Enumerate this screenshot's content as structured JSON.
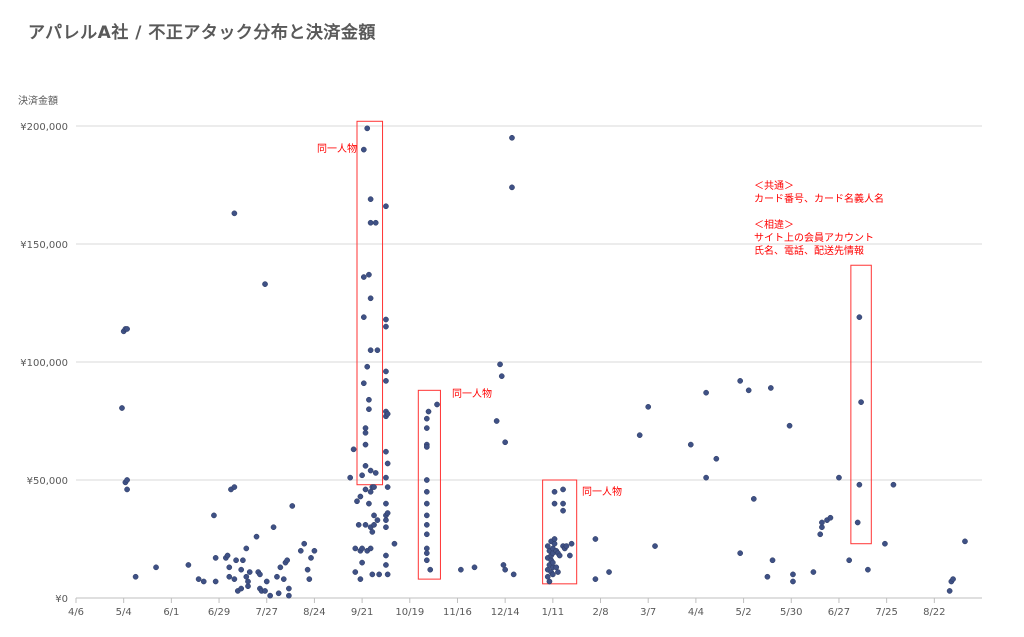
{
  "chart_data": {
    "type": "scatter",
    "title": "アパレルA社 / 不正アタック分布と決済金額",
    "ylabel": "決済金額",
    "xlabel": "",
    "ylim": [
      0,
      200000
    ],
    "grid": true,
    "x_tick_labels": [
      "4/6",
      "5/4",
      "6/1",
      "6/29",
      "7/27",
      "8/24",
      "9/21",
      "10/19",
      "11/16",
      "12/14",
      "1/11",
      "2/8",
      "3/7",
      "4/4",
      "5/2",
      "5/30",
      "6/27",
      "7/25",
      "8/22"
    ],
    "y_tick_labels": [
      "¥0",
      "¥50,000",
      "¥100,000",
      "¥150,000",
      "¥200,000"
    ],
    "y_ticks": [
      0,
      50000,
      100000,
      150000,
      200000
    ],
    "x_range_days": [
      0,
      532
    ],
    "x_tick_days": [
      0,
      28,
      56,
      84,
      112,
      140,
      168,
      196,
      224,
      252,
      280,
      308,
      336,
      364,
      392,
      420,
      448,
      476,
      504
    ],
    "points": [
      [
        27,
        80500
      ],
      [
        28,
        113000
      ],
      [
        29,
        114000
      ],
      [
        30,
        114000
      ],
      [
        29,
        49000
      ],
      [
        30,
        50000
      ],
      [
        30,
        46000
      ],
      [
        35,
        9000
      ],
      [
        47,
        13000
      ],
      [
        66,
        14000
      ],
      [
        72,
        8000
      ],
      [
        75,
        7000
      ],
      [
        82,
        7000
      ],
      [
        82,
        17000
      ],
      [
        81,
        35000
      ],
      [
        88,
        17000
      ],
      [
        89,
        18000
      ],
      [
        90,
        13000
      ],
      [
        90,
        9000
      ],
      [
        91,
        46000
      ],
      [
        93,
        47000
      ],
      [
        93,
        163000
      ],
      [
        93,
        8000
      ],
      [
        94,
        16000
      ],
      [
        95,
        3000
      ],
      [
        97,
        4000
      ],
      [
        97,
        12000
      ],
      [
        98,
        16000
      ],
      [
        100,
        21000
      ],
      [
        100,
        9000
      ],
      [
        101,
        5000
      ],
      [
        101,
        7000
      ],
      [
        102,
        11000
      ],
      [
        106,
        26000
      ],
      [
        107,
        11000
      ],
      [
        108,
        10000
      ],
      [
        108,
        4000
      ],
      [
        109,
        3000
      ],
      [
        111,
        3000
      ],
      [
        111,
        133000
      ],
      [
        112,
        7000
      ],
      [
        114,
        1000
      ],
      [
        116,
        30000
      ],
      [
        118,
        9000
      ],
      [
        119,
        2000
      ],
      [
        120,
        13000
      ],
      [
        122,
        8000
      ],
      [
        123,
        15000
      ],
      [
        124,
        16000
      ],
      [
        125,
        4000
      ],
      [
        125,
        1000
      ],
      [
        127,
        39000
      ],
      [
        132,
        20000
      ],
      [
        134,
        23000
      ],
      [
        136,
        12000
      ],
      [
        137,
        8000
      ],
      [
        138,
        17000
      ],
      [
        140,
        20000
      ],
      [
        161,
        51000
      ],
      [
        163,
        63000
      ],
      [
        164,
        21000
      ],
      [
        164,
        11000
      ],
      [
        165,
        41000
      ],
      [
        166,
        31000
      ],
      [
        167,
        43000
      ],
      [
        167,
        8000
      ],
      [
        167,
        20000
      ],
      [
        168,
        15000
      ],
      [
        168,
        21000
      ],
      [
        168,
        52000
      ],
      [
        169,
        190000
      ],
      [
        169,
        136000
      ],
      [
        169,
        119000
      ],
      [
        169,
        91000
      ],
      [
        170,
        72000
      ],
      [
        170,
        70000
      ],
      [
        170,
        65000
      ],
      [
        170,
        56000
      ],
      [
        170,
        46000
      ],
      [
        170,
        31000
      ],
      [
        171,
        199000
      ],
      [
        171,
        20000
      ],
      [
        171,
        98000
      ],
      [
        172,
        137000
      ],
      [
        172,
        80000
      ],
      [
        172,
        84000
      ],
      [
        172,
        40000
      ],
      [
        173,
        127000
      ],
      [
        173,
        105000
      ],
      [
        173,
        169000
      ],
      [
        173,
        159000
      ],
      [
        173,
        54000
      ],
      [
        173,
        45000
      ],
      [
        173,
        30000
      ],
      [
        173,
        21000
      ],
      [
        174,
        47000
      ],
      [
        174,
        28000
      ],
      [
        174,
        10000
      ],
      [
        175,
        47000
      ],
      [
        175,
        35000
      ],
      [
        175,
        31000
      ],
      [
        176,
        159000
      ],
      [
        176,
        53000
      ],
      [
        177,
        105000
      ],
      [
        177,
        33000
      ],
      [
        178,
        10000
      ],
      [
        182,
        166000
      ],
      [
        182,
        118000
      ],
      [
        182,
        115000
      ],
      [
        182,
        96000
      ],
      [
        182,
        92000
      ],
      [
        182,
        79000
      ],
      [
        182,
        77000
      ],
      [
        182,
        62000
      ],
      [
        182,
        51000
      ],
      [
        182,
        40000
      ],
      [
        182,
        35000
      ],
      [
        182,
        33000
      ],
      [
        182,
        30000
      ],
      [
        182,
        18000
      ],
      [
        182,
        14000
      ],
      [
        183,
        78000
      ],
      [
        183,
        57000
      ],
      [
        183,
        47000
      ],
      [
        183,
        36000
      ],
      [
        183,
        10000
      ],
      [
        187,
        23000
      ],
      [
        206,
        76000
      ],
      [
        206,
        72000
      ],
      [
        206,
        65000
      ],
      [
        206,
        64000
      ],
      [
        206,
        50000
      ],
      [
        206,
        45000
      ],
      [
        206,
        40000
      ],
      [
        206,
        35000
      ],
      [
        206,
        31000
      ],
      [
        206,
        27000
      ],
      [
        206,
        21000
      ],
      [
        206,
        19000
      ],
      [
        206,
        16000
      ],
      [
        207,
        79000
      ],
      [
        208,
        12000
      ],
      [
        212,
        82000
      ],
      [
        226,
        12000
      ],
      [
        234,
        13000
      ],
      [
        247,
        75000
      ],
      [
        249,
        99000
      ],
      [
        250,
        94000
      ],
      [
        251,
        14000
      ],
      [
        252,
        66000
      ],
      [
        252,
        12000
      ],
      [
        256,
        195000
      ],
      [
        256,
        174000
      ],
      [
        257,
        10000
      ],
      [
        277,
        12000
      ],
      [
        277,
        17000
      ],
      [
        277,
        22000
      ],
      [
        277,
        9000
      ],
      [
        278,
        7000
      ],
      [
        278,
        14000
      ],
      [
        278,
        20000
      ],
      [
        279,
        11000
      ],
      [
        279,
        16000
      ],
      [
        279,
        18000
      ],
      [
        279,
        24000
      ],
      [
        280,
        10000
      ],
      [
        280,
        13000
      ],
      [
        280,
        15000
      ],
      [
        280,
        19000
      ],
      [
        280,
        21000
      ],
      [
        281,
        40000
      ],
      [
        281,
        45000
      ],
      [
        281,
        23000
      ],
      [
        281,
        25000
      ],
      [
        282,
        20000
      ],
      [
        282,
        13000
      ],
      [
        283,
        11000
      ],
      [
        283,
        19000
      ],
      [
        284,
        18000
      ],
      [
        286,
        37000
      ],
      [
        286,
        40000
      ],
      [
        286,
        46000
      ],
      [
        286,
        22000
      ],
      [
        287,
        21000
      ],
      [
        288,
        22000
      ],
      [
        290,
        18000
      ],
      [
        291,
        23000
      ],
      [
        305,
        25000
      ],
      [
        305,
        8000
      ],
      [
        313,
        11000
      ],
      [
        331,
        69000
      ],
      [
        336,
        81000
      ],
      [
        340,
        22000
      ],
      [
        361,
        65000
      ],
      [
        370,
        87000
      ],
      [
        370,
        51000
      ],
      [
        376,
        59000
      ],
      [
        390,
        92000
      ],
      [
        390,
        19000
      ],
      [
        395,
        88000
      ],
      [
        398,
        42000
      ],
      [
        406,
        9000
      ],
      [
        408,
        89000
      ],
      [
        409,
        16000
      ],
      [
        419,
        73000
      ],
      [
        421,
        10000
      ],
      [
        421,
        7000
      ],
      [
        433,
        11000
      ],
      [
        437,
        27000
      ],
      [
        438,
        30000
      ],
      [
        438,
        32000
      ],
      [
        441,
        33000
      ],
      [
        443,
        34000
      ],
      [
        448,
        51000
      ],
      [
        454,
        16000
      ],
      [
        460,
        119000
      ],
      [
        461,
        83000
      ],
      [
        460,
        48000
      ],
      [
        459,
        32000
      ],
      [
        465,
        12000
      ],
      [
        475,
        23000
      ],
      [
        480,
        48000
      ],
      [
        513,
        3000
      ],
      [
        514,
        7000
      ],
      [
        515,
        8000
      ],
      [
        522,
        24000
      ]
    ],
    "annotations": [
      {
        "text": "同一人物"
      },
      {
        "text": "同一人物"
      },
      {
        "text": "同一人物"
      },
      {
        "lines": [
          "＜共通＞",
          "カード番号、カード名義人名",
          "",
          "＜相違＞",
          "サイト上の会員アカウント",
          "氏名、電話、配送先情報"
        ]
      }
    ],
    "highlight_boxes": [
      {
        "x_range": [
          165,
          180
        ],
        "y_range": [
          48000,
          202000
        ]
      },
      {
        "x_range": [
          201,
          214
        ],
        "y_range": [
          8000,
          88000
        ]
      },
      {
        "x_range": [
          274,
          294
        ],
        "y_range": [
          6000,
          50000
        ]
      },
      {
        "x_range": [
          455,
          467
        ],
        "y_range": [
          23000,
          141000
        ]
      }
    ],
    "colors": {
      "points": "#3f5185",
      "annotation": "#ff0000",
      "grid": "#d9d9d9",
      "text": "#595959"
    }
  }
}
